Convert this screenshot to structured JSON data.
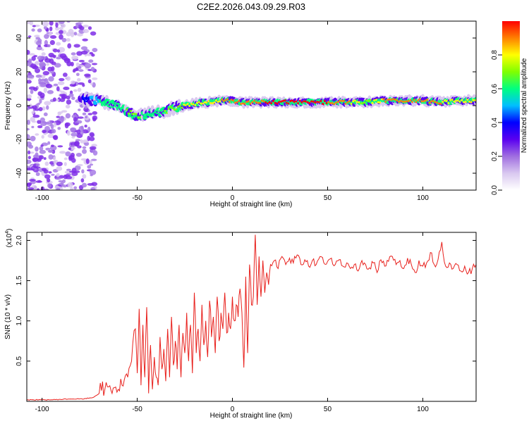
{
  "title": "C2E2.2026.043.09.29.R03",
  "chart_data": [
    {
      "type": "heatmap",
      "xlabel": "Height of straight line (km)",
      "ylabel": "Frequency (Hz)",
      "xlim": [
        -108,
        128
      ],
      "ylim": [
        -50,
        50
      ],
      "xticks": [
        -100,
        -50,
        0,
        50,
        100
      ],
      "yticks": [
        -40,
        -20,
        0,
        20,
        40
      ],
      "ridge": {
        "x": [
          -80,
          -72,
          -66,
          -60,
          -55,
          -50,
          -45,
          -40,
          -35,
          -30,
          -25,
          -20,
          -15,
          -10,
          -5,
          0,
          5,
          10,
          15,
          20,
          30,
          40,
          50,
          60,
          70,
          80,
          90,
          100,
          110,
          120,
          128
        ],
        "y": [
          4,
          3,
          2,
          0,
          -4,
          -6,
          -5,
          -4,
          -3,
          -1,
          0,
          1,
          2,
          2,
          3,
          3,
          2,
          2,
          2,
          2,
          2,
          2,
          2,
          2,
          2,
          3,
          3,
          3,
          2,
          3,
          3
        ],
        "amplitude": [
          0.3,
          0.5,
          0.6,
          0.6,
          0.65,
          0.7,
          0.6,
          0.6,
          0.65,
          0.7,
          0.75,
          0.75,
          0.8,
          0.8,
          0.85,
          0.85,
          0.9,
          0.9,
          0.9,
          1.0,
          1.0,
          0.95,
          0.95,
          0.9,
          0.7,
          0.85,
          0.9,
          0.9,
          0.85,
          0.8,
          0.8
        ]
      },
      "noise_region": {
        "x": [
          -108,
          -72
        ],
        "amplitude": 0.05
      }
    },
    {
      "type": "colorbar",
      "label": "Normalized spectral amplitude",
      "range": [
        0.0,
        1.0
      ],
      "ticks": [
        "0.0",
        "0.2",
        "0.4",
        "0.6",
        "0.8"
      ],
      "colors": [
        "#ffffff",
        "#d9c8f0",
        "#a06ee0",
        "#5a00f0",
        "#0000ff",
        "#00bfff",
        "#00ff80",
        "#80ff00",
        "#ffff00",
        "#ff8000",
        "#ff0000"
      ]
    },
    {
      "type": "line",
      "xlabel": "Height of straight line (km)",
      "ylabel": "SNR (10 * v/v)",
      "yscale_label": "(x10",
      "yscale_exp": "4",
      "yscale_close": ")",
      "xlim": [
        -108,
        128
      ],
      "ylim": [
        0,
        2.1
      ],
      "xticks": [
        -100,
        -50,
        0,
        50,
        100
      ],
      "yticks": [
        "0.5",
        "1.0",
        "1.5",
        "2.0"
      ],
      "ytick_values": [
        0.5,
        1.0,
        1.5,
        2.0
      ],
      "series": [
        {
          "name": "SNR",
          "color": "#e8201c",
          "x": [
            -108,
            -95,
            -85,
            -78,
            -73,
            -70,
            -67,
            -65,
            -62,
            -60,
            -58,
            -55,
            -53,
            -51,
            -50,
            -49,
            -48,
            -47,
            -46,
            -45,
            -44,
            -43,
            -42,
            -41,
            -40,
            -39,
            -38,
            -37,
            -36,
            -35,
            -34,
            -33,
            -32,
            -31,
            -30,
            -29,
            -28,
            -27,
            -26,
            -25,
            -24,
            -23,
            -22,
            -21,
            -20,
            -19,
            -18,
            -17,
            -16,
            -15,
            -14,
            -13,
            -12,
            -11,
            -10,
            -9,
            -8,
            -7,
            -6,
            -5,
            -4,
            -3,
            -2,
            -1,
            0,
            1,
            2,
            3,
            4,
            5,
            6,
            7,
            8,
            9,
            10,
            11,
            12,
            13,
            14,
            15,
            16,
            17,
            18,
            19,
            20,
            22,
            24,
            26,
            28,
            30,
            32,
            34,
            36,
            38,
            40,
            42,
            44,
            46,
            48,
            50,
            52,
            54,
            56,
            58,
            60,
            62,
            64,
            66,
            68,
            70,
            72,
            74,
            76,
            78,
            80,
            82,
            84,
            86,
            88,
            90,
            92,
            94,
            96,
            98,
            100,
            102,
            104,
            106,
            108,
            110,
            112,
            114,
            116,
            118,
            120,
            122,
            124,
            126,
            128
          ],
          "values": [
            0.02,
            0.02,
            0.03,
            0.03,
            0.05,
            0.1,
            0.15,
            0.18,
            0.17,
            0.15,
            0.2,
            0.3,
            0.5,
            0.9,
            0.35,
            1.15,
            0.2,
            0.95,
            0.3,
            1.17,
            0.1,
            0.7,
            0.15,
            0.55,
            0.3,
            0.2,
            0.8,
            0.4,
            0.65,
            0.25,
            0.9,
            0.3,
            1.05,
            0.45,
            0.75,
            0.4,
            0.95,
            0.3,
            0.85,
            0.6,
            1.1,
            0.5,
            0.95,
            0.35,
            1.35,
            0.6,
            0.9,
            0.5,
            1.2,
            0.7,
            1.0,
            0.55,
            1.25,
            0.8,
            1.05,
            0.6,
            1.3,
            0.75,
            1.1,
            0.9,
            1.35,
            0.85,
            1.1,
            0.9,
            1.3,
            1.0,
            1.2,
            1.05,
            1.4,
            1.1,
            0.42,
            1.55,
            0.6,
            1.7,
            1.2,
            1.3,
            2.07,
            1.2,
            1.8,
            1.3,
            1.75,
            1.35,
            1.6,
            1.45,
            1.7,
            1.75,
            1.65,
            1.8,
            1.7,
            1.78,
            1.72,
            1.82,
            1.7,
            1.76,
            1.68,
            1.75,
            1.7,
            1.8,
            1.72,
            1.74,
            1.78,
            1.7,
            1.76,
            1.68,
            1.72,
            1.65,
            1.7,
            1.62,
            1.75,
            1.7,
            1.66,
            1.72,
            1.6,
            1.76,
            1.68,
            1.74,
            1.8,
            1.7,
            1.75,
            1.65,
            1.78,
            1.7,
            1.6,
            1.75,
            1.68,
            1.72,
            1.85,
            1.7,
            1.76,
            1.98,
            1.68,
            1.72,
            1.65,
            1.7,
            1.62,
            1.68,
            1.6,
            1.65,
            1.7
          ]
        }
      ]
    }
  ]
}
